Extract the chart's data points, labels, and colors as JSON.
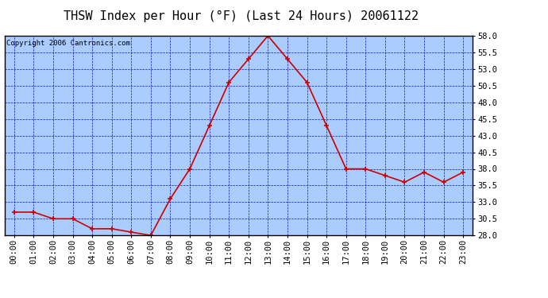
{
  "title": "THSW Index per Hour (°F) (Last 24 Hours) 20061122",
  "copyright": "Copyright 2006 Cantronics.com",
  "hours": [
    0,
    1,
    2,
    3,
    4,
    5,
    6,
    7,
    8,
    9,
    10,
    11,
    12,
    13,
    14,
    15,
    16,
    17,
    18,
    19,
    20,
    21,
    22,
    23
  ],
  "hour_labels": [
    "00:00",
    "01:00",
    "02:00",
    "03:00",
    "04:00",
    "05:00",
    "06:00",
    "07:00",
    "08:00",
    "09:00",
    "10:00",
    "11:00",
    "12:00",
    "13:00",
    "14:00",
    "15:00",
    "16:00",
    "17:00",
    "18:00",
    "19:00",
    "20:00",
    "21:00",
    "22:00",
    "23:00"
  ],
  "values": [
    31.5,
    31.5,
    30.5,
    30.5,
    29.0,
    29.0,
    28.5,
    28.0,
    33.5,
    38.0,
    44.5,
    51.0,
    54.5,
    58.0,
    54.5,
    51.0,
    44.5,
    38.0,
    38.0,
    37.0,
    36.0,
    37.5,
    36.0,
    37.5
  ],
  "ylim": [
    28.0,
    58.0
  ],
  "yticks": [
    28.0,
    30.5,
    33.0,
    35.5,
    38.0,
    40.5,
    43.0,
    45.5,
    48.0,
    50.5,
    53.0,
    55.5,
    58.0
  ],
  "line_color": "#cc0000",
  "marker_color": "#cc0000",
  "bg_color": "#aaccff",
  "grid_color": "#0000bb",
  "border_color": "#000000",
  "title_color": "#000000",
  "copyright_color": "#000000",
  "title_fontsize": 11,
  "tick_fontsize": 7.5,
  "copyright_fontsize": 6.5
}
